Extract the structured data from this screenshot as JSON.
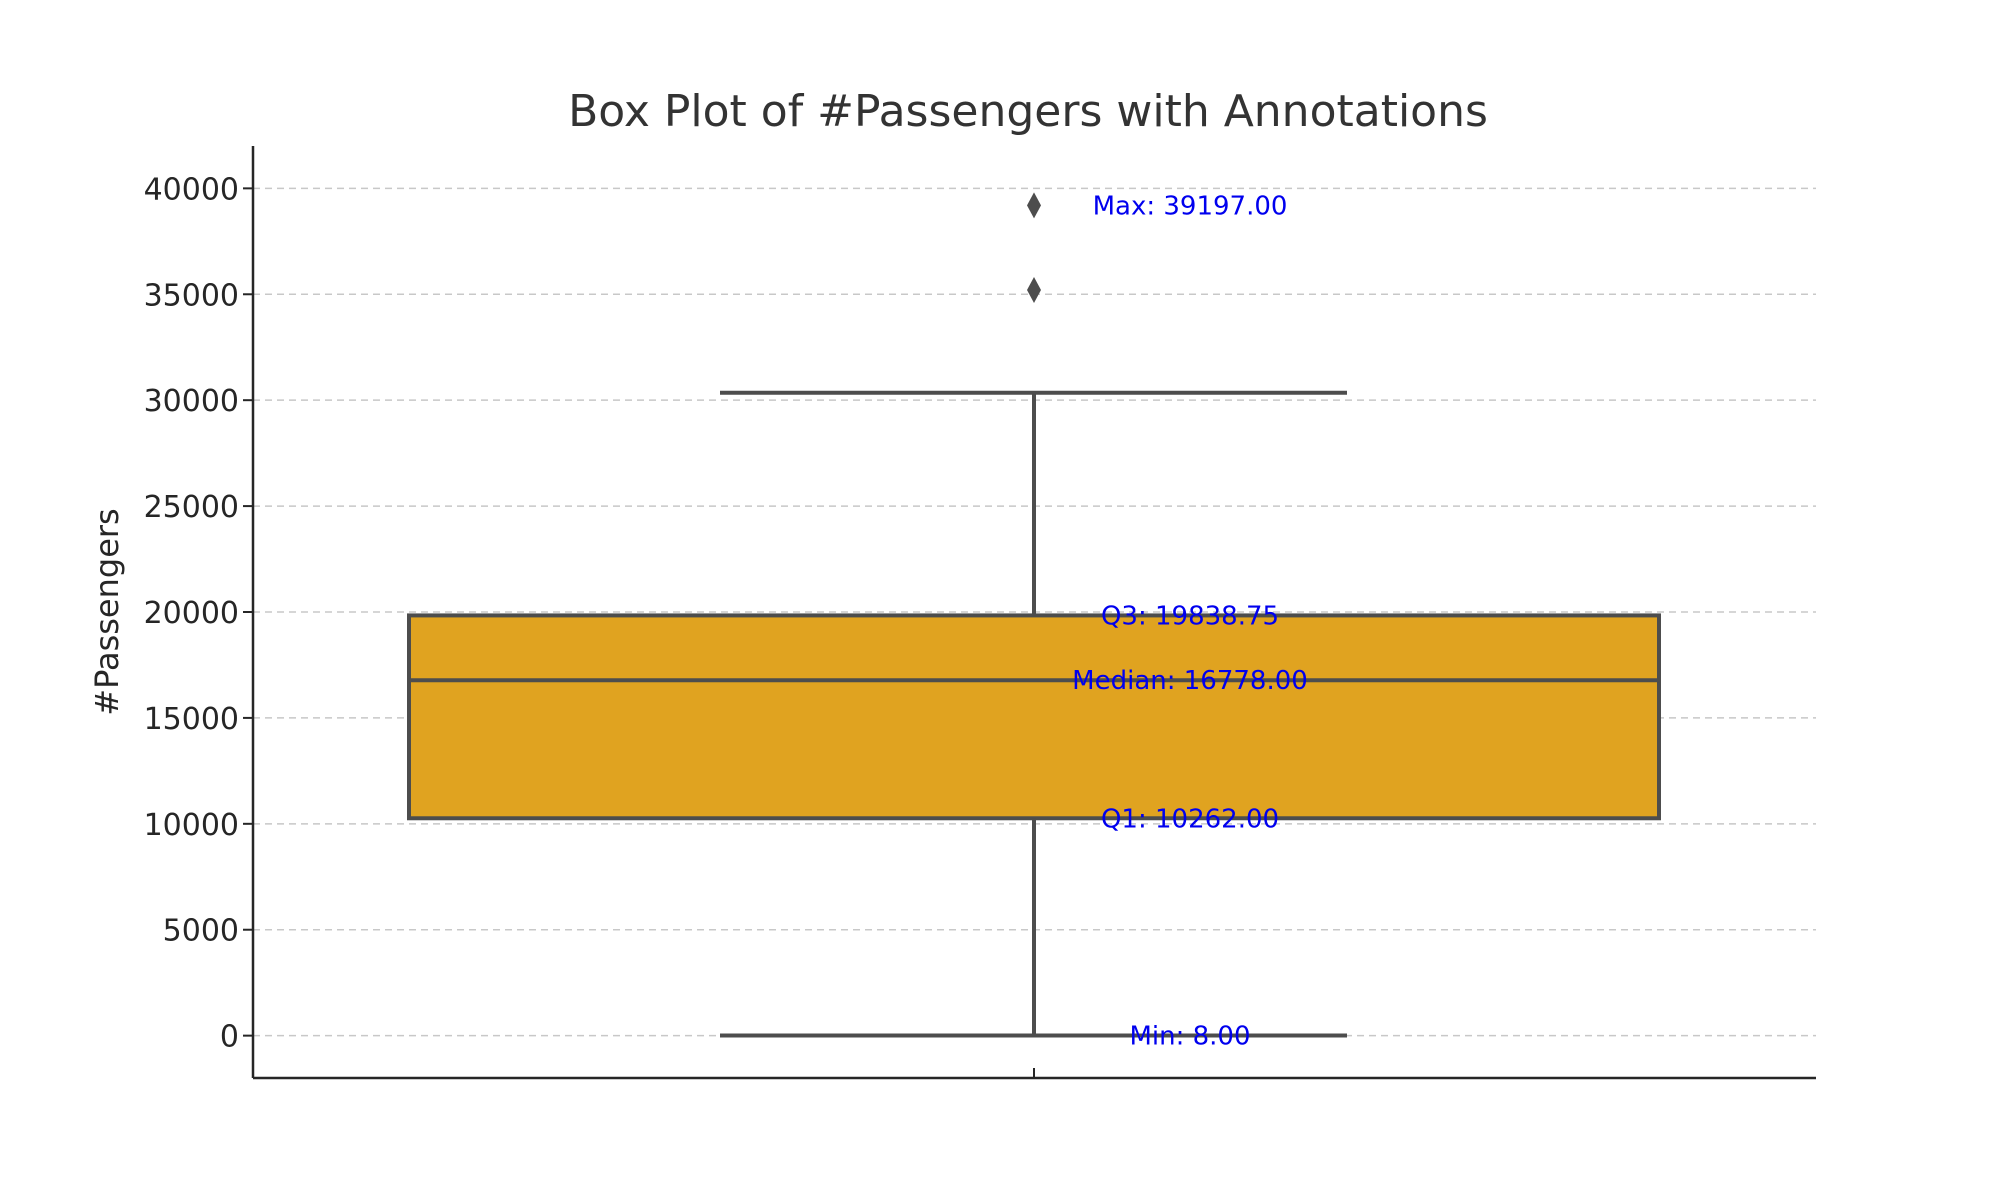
{
  "chart_data": {
    "type": "box",
    "title": "Box Plot of #Passengers with Annotations",
    "xlabel": "",
    "ylabel": "#Passengers",
    "ylim": [
      -2000,
      42000
    ],
    "yticks": [
      0,
      5000,
      10000,
      15000,
      20000,
      25000,
      30000,
      35000,
      40000
    ],
    "grid": true,
    "box": {
      "min": 8.0,
      "q1": 10262.0,
      "median": 16778.0,
      "q3": 19838.75,
      "whisker_high": 30350,
      "outliers": [
        35200,
        39197.0
      ],
      "max": 39197.0
    },
    "annotations": [
      {
        "text": "Max: 39197.00",
        "y": 39197.0
      },
      {
        "text": "Q3: 19838.75",
        "y": 19838.75
      },
      {
        "text": "Median: 16778.00",
        "y": 16778.0
      },
      {
        "text": "Q1: 10262.00",
        "y": 10262.0
      },
      {
        "text": "Min: 8.00",
        "y": 8.0
      }
    ],
    "colors": {
      "box_fill": "#e0a320",
      "line": "#4d4d4d",
      "annotation": "#0000ee"
    }
  }
}
